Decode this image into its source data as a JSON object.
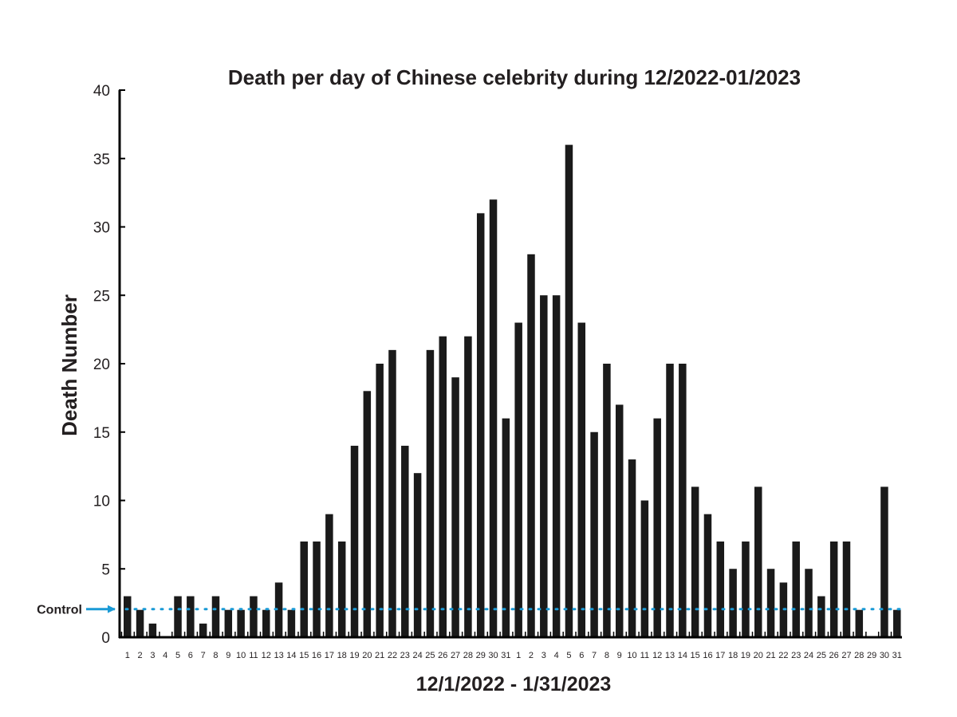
{
  "chart_data": {
    "type": "bar",
    "title": "Death per day of Chinese celebrity during 12/2022-01/2023",
    "xlabel": "12/1/2022 - 1/31/2023",
    "ylabel": "Death Number",
    "ylim": [
      0,
      40
    ],
    "yticks": [
      0,
      5,
      10,
      15,
      20,
      25,
      30,
      35,
      40
    ],
    "grid": false,
    "categories": [
      "1",
      "2",
      "3",
      "4",
      "5",
      "6",
      "7",
      "8",
      "9",
      "10",
      "11",
      "12",
      "13",
      "14",
      "15",
      "16",
      "17",
      "18",
      "19",
      "20",
      "21",
      "22",
      "23",
      "24",
      "25",
      "26",
      "27",
      "28",
      "29",
      "30",
      "31",
      "1",
      "2",
      "3",
      "4",
      "5",
      "6",
      "7",
      "8",
      "9",
      "10",
      "11",
      "12",
      "13",
      "14",
      "15",
      "16",
      "17",
      "18",
      "19",
      "20",
      "21",
      "22",
      "23",
      "24",
      "25",
      "26",
      "27",
      "28",
      "29",
      "30",
      "31"
    ],
    "values": [
      3,
      2,
      1,
      0,
      3,
      3,
      1,
      3,
      2,
      2,
      3,
      2,
      4,
      2,
      7,
      7,
      9,
      7,
      14,
      18,
      20,
      21,
      14,
      12,
      21,
      22,
      19,
      22,
      31,
      32,
      16,
      23,
      28,
      25,
      25,
      36,
      23,
      15,
      20,
      17,
      13,
      10,
      16,
      20,
      20,
      11,
      9,
      7,
      5,
      7,
      11,
      5,
      4,
      7,
      5,
      3,
      7,
      7,
      2,
      0,
      11,
      2
    ],
    "bar_color": "#1a1a1a",
    "control": {
      "label": "Control",
      "value": 2,
      "color": "#1a9ad6"
    }
  }
}
